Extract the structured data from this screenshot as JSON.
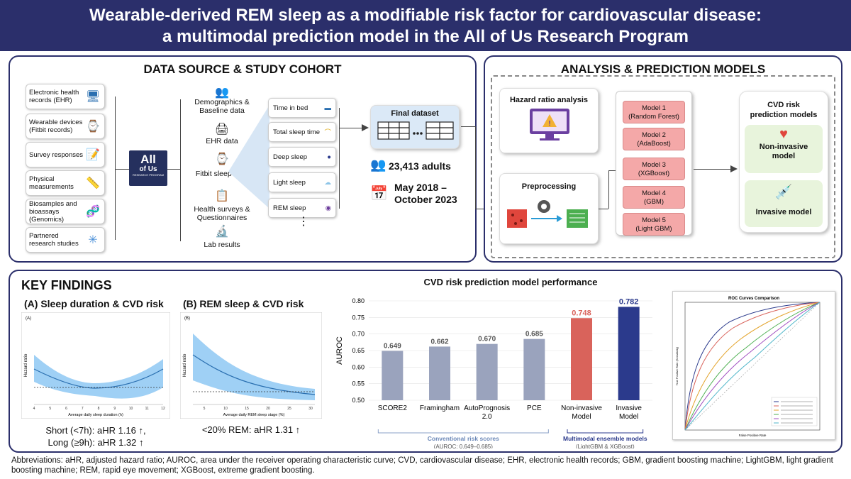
{
  "title_line1": "Wearable-derived REM sleep as a modifiable risk factor for cardiovascular disease:",
  "title_line2": "a multimodal prediction model in the All of Us Research Program",
  "data_source": {
    "title": "DATA SOURCE & STUDY COHORT",
    "sources": [
      "Electronic health records (EHR)",
      "Wearable devices (Fitbit records)",
      "Survey responses",
      "Physical measurements",
      "Biosamples and bioassays (Genomics)",
      "Partnered research studies"
    ],
    "logo_line1": "All",
    "logo_line2": "of Us",
    "logo_line3": "RESEARCH PROGRAM",
    "categories": [
      "Demographics & Baseline data",
      "EHR data",
      "Fitbit sleep data",
      "Health surveys & Questionnaires",
      "Lab results"
    ],
    "sleep_items": [
      "Time in bed",
      "Total sleep time",
      "Deep sleep",
      "Light sleep",
      "REM sleep"
    ],
    "ellipsis": "⋮",
    "final_dataset": "Final dataset",
    "adults": "23,413 adults",
    "period_line1": "May 2018 –",
    "period_line2": "October 2023"
  },
  "analysis": {
    "title": "ANALYSIS & PREDICTION MODELS",
    "hazard": "Hazard ratio analysis",
    "preprocessing": "Preprocessing",
    "models": [
      {
        "name": "Model 1",
        "algo": "(Random Forest)"
      },
      {
        "name": "Model 2",
        "algo": "(AdaBoost)"
      },
      {
        "name": "Model 3",
        "algo": "(XGBoost)"
      },
      {
        "name": "Model 4",
        "algo": "(GBM)"
      },
      {
        "name": "Model 5",
        "algo": "(Light GBM)"
      }
    ],
    "cvd_title": "CVD risk prediction models",
    "noninvasive": "Non-invasive model",
    "invasive": "Invasive model"
  },
  "findings": {
    "title": "KEY FINDINGS",
    "a_title": "(A) Sleep duration & CVD risk",
    "a_tag": "(A)",
    "a_ylabel": "Hazard ratio",
    "a_xlabel": "Average daily sleep duration (h)",
    "a_ticks": [
      "4",
      "5",
      "6",
      "7",
      "8",
      "9",
      "10",
      "11",
      "12"
    ],
    "a_line1": "Short (<7h): aHR 1.16 ↑,",
    "a_line2": "Long (≥9h): aHR 1.32 ↑",
    "b_title": "(B) REM sleep & CVD risk",
    "b_tag": "(B)",
    "b_ylabel": "Hazard ratio",
    "b_xlabel": "Average daily REM sleep stage (%)",
    "b_ticks": [
      "5",
      "10",
      "15",
      "20",
      "25",
      "30"
    ],
    "b_line1": "<20% REM: aHR 1.31 ↑"
  },
  "chart_data": {
    "type": "bar",
    "title": "CVD risk prediction model performance",
    "ylabel": "AUROC",
    "ylim": [
      0.5,
      0.8
    ],
    "yticks": [
      "0.50",
      "0.55",
      "0.60",
      "0.65",
      "0.70",
      "0.75",
      "0.80"
    ],
    "categories": [
      "SCORE2",
      "Framingham",
      "AutoPrognosis 2.0",
      "PCE",
      "Non-invasive Model",
      "Invasive Model"
    ],
    "values": [
      0.649,
      0.662,
      0.67,
      0.685,
      0.748,
      0.782
    ],
    "value_labels": [
      "0.649",
      "0.662",
      "0.670",
      "0.685",
      "0.748",
      "0.782"
    ],
    "colors": [
      "#9aa3bd",
      "#9aa3bd",
      "#9aa3bd",
      "#9aa3bd",
      "#d9635b",
      "#2b3a8c"
    ],
    "group1": "Conventional risk scores",
    "group1_sub": "(AUROC: 0.649–0.685)",
    "group2": "Multimodal ensemble models",
    "group2_sub": "(LightGBM & XGBoost)"
  },
  "roc": {
    "title": "ROC Curves Comparison",
    "ylabel": "True Positive Rate (Sensitivity)",
    "xlabel": "False Positive Rate"
  },
  "abbreviations": "Abbreviations: aHR, adjusted hazard ratio; AUROC, area under the receiver operating characteristic curve; CVD, cardiovascular disease; EHR, electronic health records; GBM, gradient boosting machine; LightGBM, light gradient boosting machine; REM, rapid eye movement; XGBoost, extreme gradient boosting."
}
